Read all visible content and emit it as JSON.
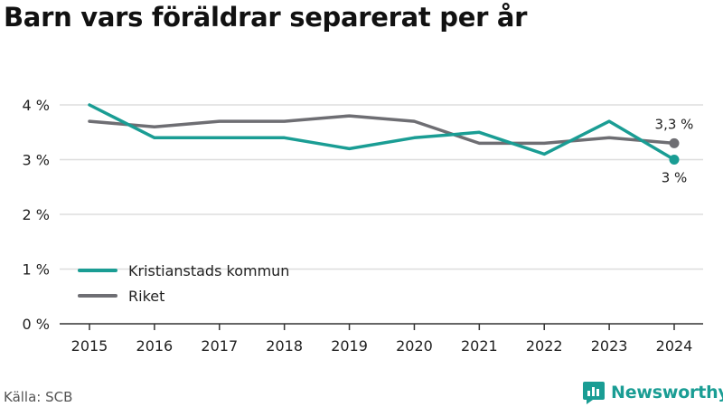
{
  "title": "Barn vars föräldrar separerat per år",
  "source": "Källa: SCB",
  "brand": {
    "name": "Newsworthy",
    "icon": "newsworthy-logo-icon"
  },
  "colors": {
    "kristianstad": "#1a9d94",
    "riket": "#6e6e73",
    "grid": "#dddddd",
    "axis": "#333333"
  },
  "chart_data": {
    "type": "line",
    "x": [
      "2015",
      "2016",
      "2017",
      "2018",
      "2019",
      "2020",
      "2021",
      "2022",
      "2023",
      "2024"
    ],
    "ylim": [
      0,
      4
    ],
    "yticks": [
      {
        "value": 0,
        "label": "0 %"
      },
      {
        "value": 1,
        "label": "1 %"
      },
      {
        "value": 2,
        "label": "2 %"
      },
      {
        "value": 3,
        "label": "3 %"
      },
      {
        "value": 4,
        "label": "4 %"
      }
    ],
    "grid": true,
    "legend": "bottom-left",
    "series": [
      {
        "key": "kristianstad",
        "name": "Kristianstads kommun",
        "values": [
          4.0,
          3.4,
          3.4,
          3.4,
          3.2,
          3.4,
          3.5,
          3.1,
          3.7,
          3.0
        ],
        "end_label": "3 %"
      },
      {
        "key": "riket",
        "name": "Riket",
        "values": [
          3.7,
          3.6,
          3.7,
          3.7,
          3.8,
          3.7,
          3.3,
          3.3,
          3.4,
          3.3
        ],
        "end_label": "3,3 %"
      }
    ]
  }
}
